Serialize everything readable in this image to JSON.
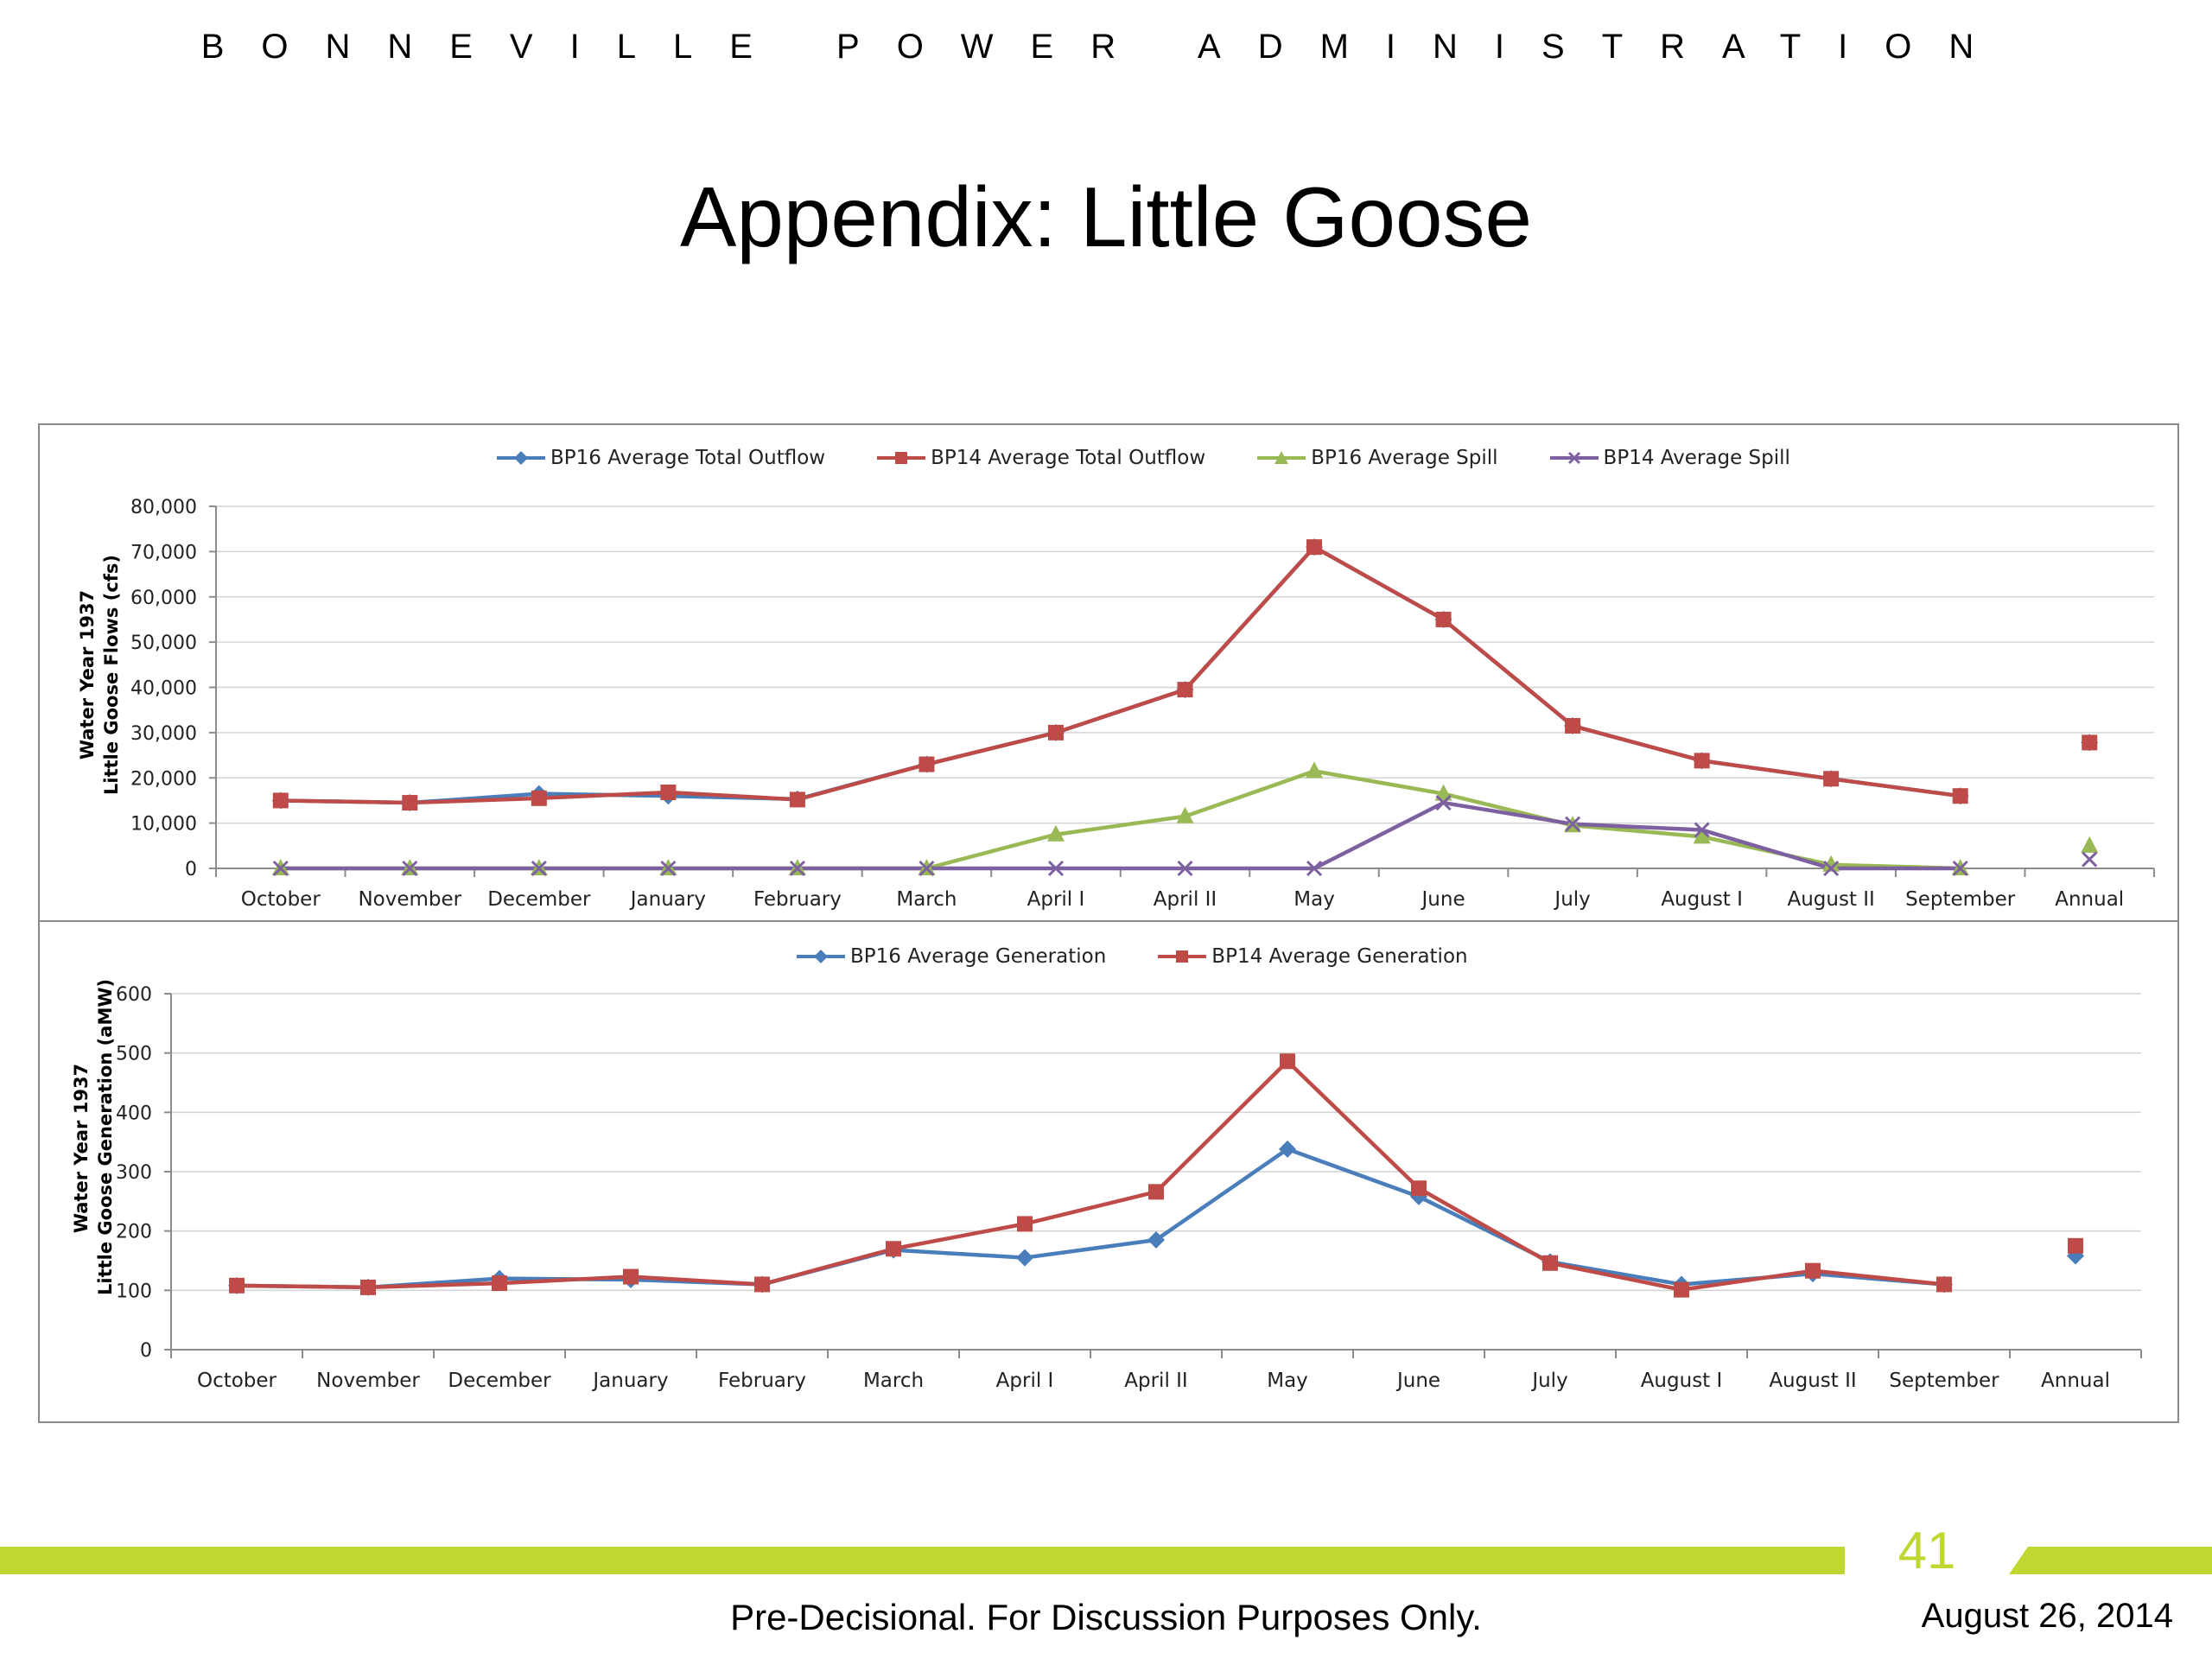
{
  "header": {
    "organization": "BONNEVILLE POWER ADMINISTRATION",
    "title": "Appendix:  Little Goose"
  },
  "footer": {
    "page_number": "41",
    "note": "Pre-Decisional.  For Discussion Purposes Only.",
    "date": "August 26, 2014"
  },
  "colors": {
    "accent_green": "#bfd730",
    "series_blue": "#4a7ebb",
    "series_red": "#be4b48",
    "series_green": "#98b954",
    "series_purple": "#7d60a0"
  },
  "chart_data": [
    {
      "type": "line",
      "categories": [
        "October",
        "November",
        "December",
        "January",
        "February",
        "March",
        "April I",
        "April II",
        "May",
        "June",
        "July",
        "August I",
        "August II",
        "September",
        "Annual"
      ],
      "ylabel_line1": "Water Year 1937",
      "ylabel_line2": "Little Goose Flows (cfs)",
      "ylim": [
        0,
        80000
      ],
      "yticks": [
        0,
        10000,
        20000,
        30000,
        40000,
        50000,
        60000,
        70000,
        80000
      ],
      "ytick_labels": [
        "0",
        "10,000",
        "20,000",
        "30,000",
        "40,000",
        "50,000",
        "60,000",
        "70,000",
        "80,000"
      ],
      "grid": true,
      "legend_position": "top",
      "series": [
        {
          "name": "BP16 Average Total Outflow",
          "marker": "diamond",
          "color": "#4a7ebb",
          "values": [
            15000,
            14500,
            16500,
            16000,
            15300,
            23000,
            30000,
            39500,
            71000,
            55000,
            31500,
            23800,
            19800,
            16000,
            null
          ],
          "annual": 27800
        },
        {
          "name": "BP14 Average Total Outflow",
          "marker": "square",
          "color": "#be4b48",
          "values": [
            15000,
            14500,
            15500,
            16800,
            15200,
            23000,
            30000,
            39500,
            71000,
            55000,
            31500,
            23800,
            19800,
            16000,
            null
          ],
          "annual": 27800
        },
        {
          "name": "BP16 Average Spill",
          "marker": "triangle",
          "color": "#98b954",
          "values": [
            0,
            0,
            0,
            0,
            0,
            0,
            7500,
            11500,
            21500,
            16500,
            9500,
            7000,
            800,
            0,
            null
          ],
          "annual": 5000
        },
        {
          "name": "BP14 Average Spill",
          "marker": "x",
          "color": "#7d60a0",
          "values": [
            0,
            0,
            0,
            0,
            0,
            0,
            0,
            0,
            0,
            14500,
            9800,
            8500,
            0,
            0,
            null
          ],
          "annual": 2000
        }
      ]
    },
    {
      "type": "line",
      "categories": [
        "October",
        "November",
        "December",
        "January",
        "February",
        "March",
        "April I",
        "April II",
        "May",
        "June",
        "July",
        "August I",
        "August II",
        "September",
        "Annual"
      ],
      "ylabel_line1": "Water Year 1937",
      "ylabel_line2": "Little Goose Generation (aMW)",
      "ylim": [
        0,
        600
      ],
      "yticks": [
        0,
        100,
        200,
        300,
        400,
        500,
        600
      ],
      "ytick_labels": [
        "0",
        "100",
        "200",
        "300",
        "400",
        "500",
        "600"
      ],
      "grid": true,
      "legend_position": "top",
      "series": [
        {
          "name": "BP16 Average Generation",
          "marker": "diamond",
          "color": "#4a7ebb",
          "values": [
            108,
            105,
            120,
            118,
            110,
            168,
            155,
            185,
            338,
            258,
            148,
            110,
            128,
            110,
            null
          ],
          "annual": 158
        },
        {
          "name": "BP14 Average Generation",
          "marker": "square",
          "color": "#be4b48",
          "values": [
            108,
            105,
            112,
            123,
            110,
            170,
            212,
            266,
            486,
            272,
            146,
            101,
            133,
            110,
            null
          ],
          "annual": 175
        }
      ]
    }
  ]
}
